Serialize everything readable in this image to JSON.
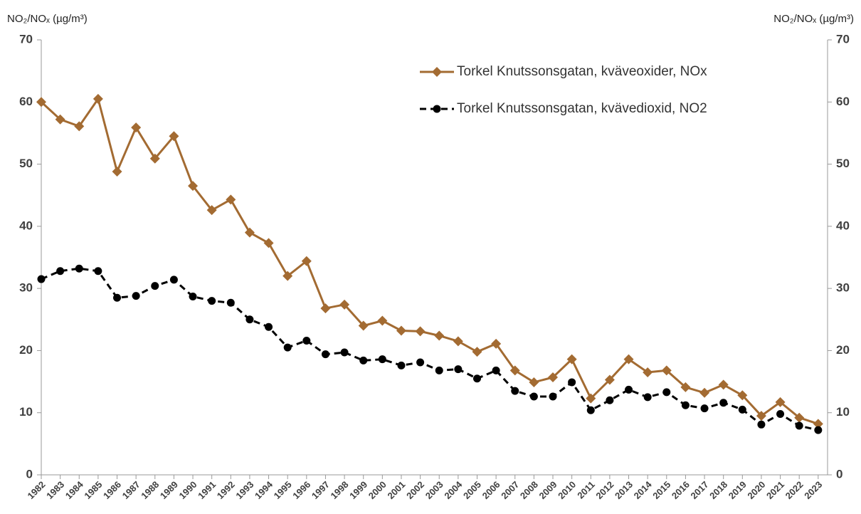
{
  "chart_data": {
    "type": "line",
    "y_label": "NO₂/NOₓ (µg/m³)",
    "y2_label": "NO₂/NOₓ (µg/m³)",
    "categories": [
      "1982",
      "1983",
      "1984",
      "1985",
      "1986",
      "1987",
      "1988",
      "1989",
      "1990",
      "1991",
      "1992",
      "1993",
      "1994",
      "1995",
      "1996",
      "1997",
      "1998",
      "1999",
      "2000",
      "2001",
      "2002",
      "2003",
      "2004",
      "2005",
      "2006",
      "2007",
      "2008",
      "2009",
      "2010",
      "2011",
      "2012",
      "2013",
      "2014",
      "2015",
      "2016",
      "2017",
      "2018",
      "2019",
      "2020",
      "2021",
      "2022",
      "2023"
    ],
    "series": [
      {
        "name": "Torkel Knutssonsgatan, kväveoxider, NOx",
        "color": "#a36b32",
        "marker": "diamond",
        "dashed": false,
        "values": [
          60,
          57.2,
          56.1,
          60.5,
          48.8,
          55.9,
          50.9,
          54.5,
          46.5,
          42.6,
          44.3,
          39,
          37.3,
          32,
          34.4,
          26.8,
          27.4,
          24,
          24.8,
          23.2,
          23.1,
          22.4,
          21.5,
          19.8,
          21.1,
          16.8,
          14.9,
          15.7,
          18.6,
          12.3,
          15.3,
          18.6,
          16.5,
          16.8,
          14.1,
          13.2,
          14.5,
          12.8,
          9.5,
          11.7,
          9.2,
          8.2
        ]
      },
      {
        "name": "Torkel Knutssonsgatan, kvävedioxid, NO2",
        "color": "#000000",
        "marker": "circle",
        "dashed": true,
        "values": [
          31.5,
          32.8,
          33.2,
          32.8,
          28.5,
          28.8,
          30.4,
          31.4,
          28.7,
          28,
          27.7,
          25,
          23.8,
          20.5,
          21.6,
          19.4,
          19.7,
          18.4,
          18.6,
          17.6,
          18.1,
          16.8,
          17,
          15.5,
          16.8,
          13.5,
          12.6,
          12.6,
          14.9,
          10.4,
          12,
          13.7,
          12.5,
          13.3,
          11.2,
          10.7,
          11.6,
          10.5,
          8.1,
          9.8,
          7.9,
          7.2
        ]
      }
    ],
    "ylim": [
      0,
      70
    ],
    "yticks": [
      0,
      10,
      20,
      30,
      40,
      50,
      60,
      70
    ],
    "y2lim": [
      0,
      70
    ],
    "y2ticks": [
      0,
      10,
      20,
      30,
      40,
      50,
      60,
      70
    ],
    "grid": false,
    "legend": "top-right"
  }
}
